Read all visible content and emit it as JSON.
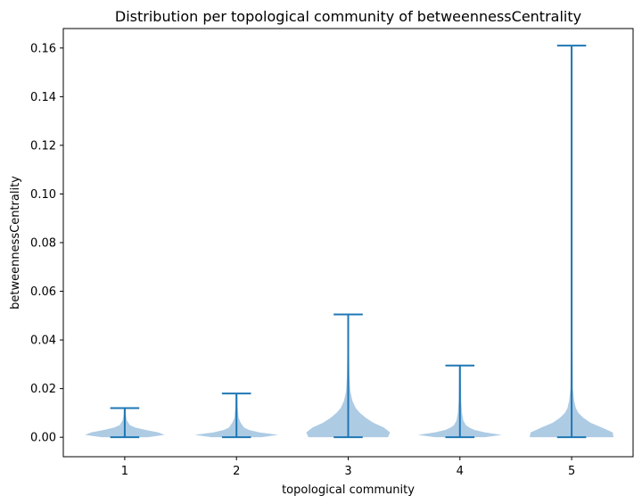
{
  "chart_data": {
    "type": "violin",
    "title": "Distribution per topological community of betweennessCentrality",
    "xlabel": "topological community",
    "ylabel": "betweennessCentrality",
    "categories": [
      "1",
      "2",
      "3",
      "4",
      "5"
    ],
    "ylim": [
      -0.008,
      0.168
    ],
    "yticks": [
      "0.00",
      "0.02",
      "0.04",
      "0.06",
      "0.08",
      "0.10",
      "0.12",
      "0.14",
      "0.16"
    ],
    "grid": false,
    "series": [
      {
        "category": "1",
        "min": 0.0,
        "max": 0.012,
        "density": [
          [
            0.0,
            0.55
          ],
          [
            0.001,
            0.95
          ],
          [
            0.002,
            0.8
          ],
          [
            0.003,
            0.5
          ],
          [
            0.004,
            0.25
          ],
          [
            0.005,
            0.12
          ],
          [
            0.007,
            0.05
          ],
          [
            0.009,
            0.03
          ],
          [
            0.012,
            0.02
          ]
        ]
      },
      {
        "category": "2",
        "min": 0.0,
        "max": 0.018,
        "density": [
          [
            0.0,
            0.6
          ],
          [
            0.001,
            1.0
          ],
          [
            0.002,
            0.55
          ],
          [
            0.003,
            0.3
          ],
          [
            0.004,
            0.18
          ],
          [
            0.006,
            0.1
          ],
          [
            0.008,
            0.05
          ],
          [
            0.012,
            0.03
          ],
          [
            0.018,
            0.02
          ]
        ]
      },
      {
        "category": "3",
        "min": 0.0,
        "max": 0.0505,
        "density": [
          [
            0.0,
            0.95
          ],
          [
            0.002,
            1.0
          ],
          [
            0.004,
            0.85
          ],
          [
            0.006,
            0.6
          ],
          [
            0.008,
            0.42
          ],
          [
            0.01,
            0.28
          ],
          [
            0.012,
            0.18
          ],
          [
            0.015,
            0.1
          ],
          [
            0.019,
            0.05
          ],
          [
            0.025,
            0.03
          ],
          [
            0.035,
            0.02
          ],
          [
            0.0505,
            0.02
          ]
        ]
      },
      {
        "category": "4",
        "min": 0.0,
        "max": 0.0295,
        "density": [
          [
            0.0,
            0.6
          ],
          [
            0.001,
            1.0
          ],
          [
            0.002,
            0.6
          ],
          [
            0.003,
            0.35
          ],
          [
            0.004,
            0.22
          ],
          [
            0.005,
            0.14
          ],
          [
            0.007,
            0.08
          ],
          [
            0.01,
            0.05
          ],
          [
            0.015,
            0.03
          ],
          [
            0.0295,
            0.02
          ]
        ]
      },
      {
        "category": "5",
        "min": 0.0,
        "max": 0.161,
        "density": [
          [
            0.0,
            1.0
          ],
          [
            0.002,
            0.98
          ],
          [
            0.004,
            0.72
          ],
          [
            0.006,
            0.45
          ],
          [
            0.008,
            0.28
          ],
          [
            0.01,
            0.16
          ],
          [
            0.012,
            0.1
          ],
          [
            0.015,
            0.06
          ],
          [
            0.02,
            0.03
          ],
          [
            0.04,
            0.02
          ],
          [
            0.08,
            0.02
          ],
          [
            0.161,
            0.02
          ]
        ]
      }
    ],
    "colors": {
      "body": "#aecbe4",
      "line": "#1f77b4"
    }
  }
}
